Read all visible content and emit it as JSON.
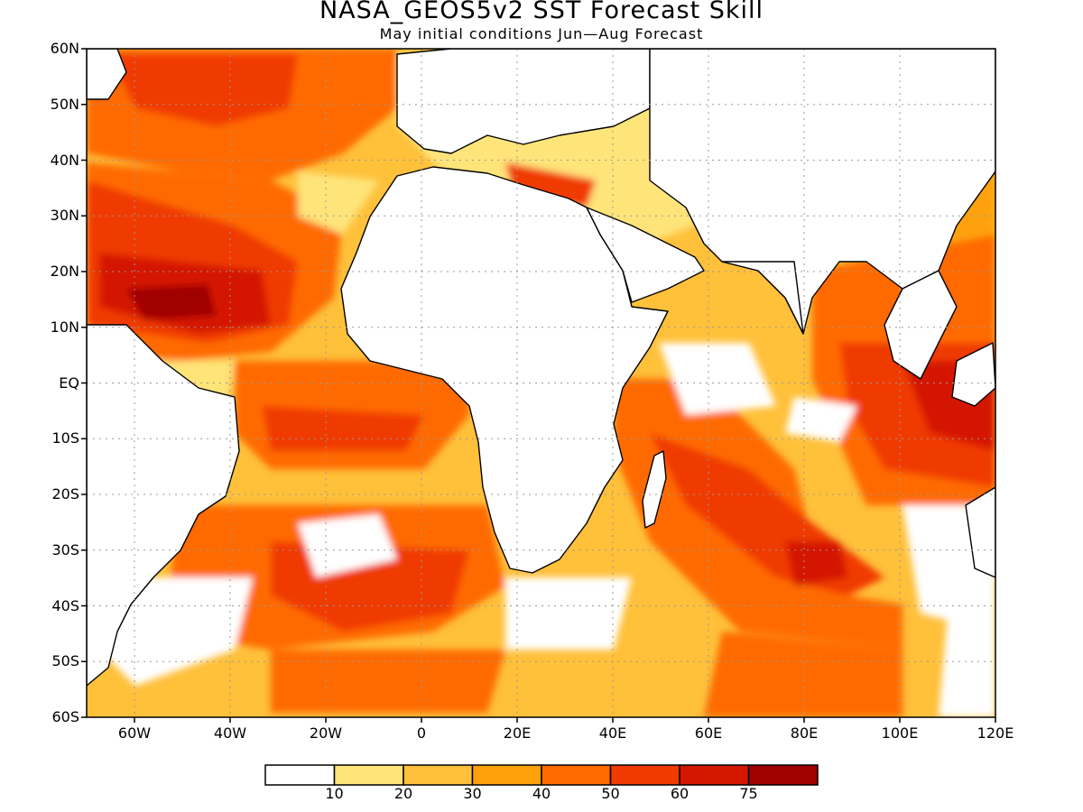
{
  "title": "NASA_GEOS5v2 SST Forecast Skill",
  "subtitle": "May initial conditions  Jun—Aug Forecast",
  "map": {
    "extent": {
      "lon_min": -70,
      "lon_max": 120,
      "lat_min": -60,
      "lat_max": 60
    },
    "lat_ticks": [
      {
        "value": 60,
        "label": "60N"
      },
      {
        "value": 50,
        "label": "50N"
      },
      {
        "value": 40,
        "label": "40N"
      },
      {
        "value": 30,
        "label": "30N"
      },
      {
        "value": 20,
        "label": "20N"
      },
      {
        "value": 10,
        "label": "10N"
      },
      {
        "value": 0,
        "label": "EQ"
      },
      {
        "value": -10,
        "label": "10S"
      },
      {
        "value": -20,
        "label": "20S"
      },
      {
        "value": -30,
        "label": "30S"
      },
      {
        "value": -40,
        "label": "40S"
      },
      {
        "value": -50,
        "label": "50S"
      },
      {
        "value": -60,
        "label": "60S"
      }
    ],
    "lon_ticks": [
      {
        "value": -60,
        "label": "60W"
      },
      {
        "value": -40,
        "label": "40W"
      },
      {
        "value": -20,
        "label": "20W"
      },
      {
        "value": 0,
        "label": "0"
      },
      {
        "value": 20,
        "label": "20E"
      },
      {
        "value": 40,
        "label": "40E"
      },
      {
        "value": 60,
        "label": "60E"
      },
      {
        "value": 80,
        "label": "80E"
      },
      {
        "value": 100,
        "label": "100E"
      },
      {
        "value": 120,
        "label": "120E"
      }
    ],
    "grid": true
  },
  "legend": {
    "colors": [
      "#ffffff",
      "#ffe47a",
      "#ffc03a",
      "#ffa10a",
      "#ff6a00",
      "#f03a00",
      "#d41800",
      "#a00000"
    ],
    "labels": [
      "10",
      "20",
      "30",
      "40",
      "50",
      "60",
      "75"
    ]
  }
}
